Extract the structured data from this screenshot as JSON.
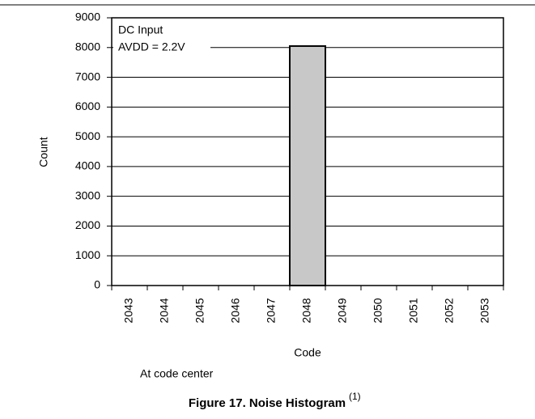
{
  "chart_data": {
    "type": "bar",
    "title": "Figure 17. Noise Histogram",
    "title_note": "(1)",
    "annotations": [
      "DC Input",
      "AVDD = 2.2V"
    ],
    "note": "At code center",
    "xlabel": "Code",
    "ylabel": "Count",
    "categories": [
      "2043",
      "2044",
      "2045",
      "2046",
      "2047",
      "2048",
      "2049",
      "2050",
      "2051",
      "2052",
      "2053"
    ],
    "values": [
      0,
      0,
      0,
      0,
      0,
      8050,
      0,
      0,
      0,
      0,
      0
    ],
    "color": "#c8c8c8",
    "ylim": [
      0,
      9000
    ],
    "yticks": [
      0,
      1000,
      2000,
      3000,
      4000,
      5000,
      6000,
      7000,
      8000,
      9000
    ],
    "grid": true
  }
}
